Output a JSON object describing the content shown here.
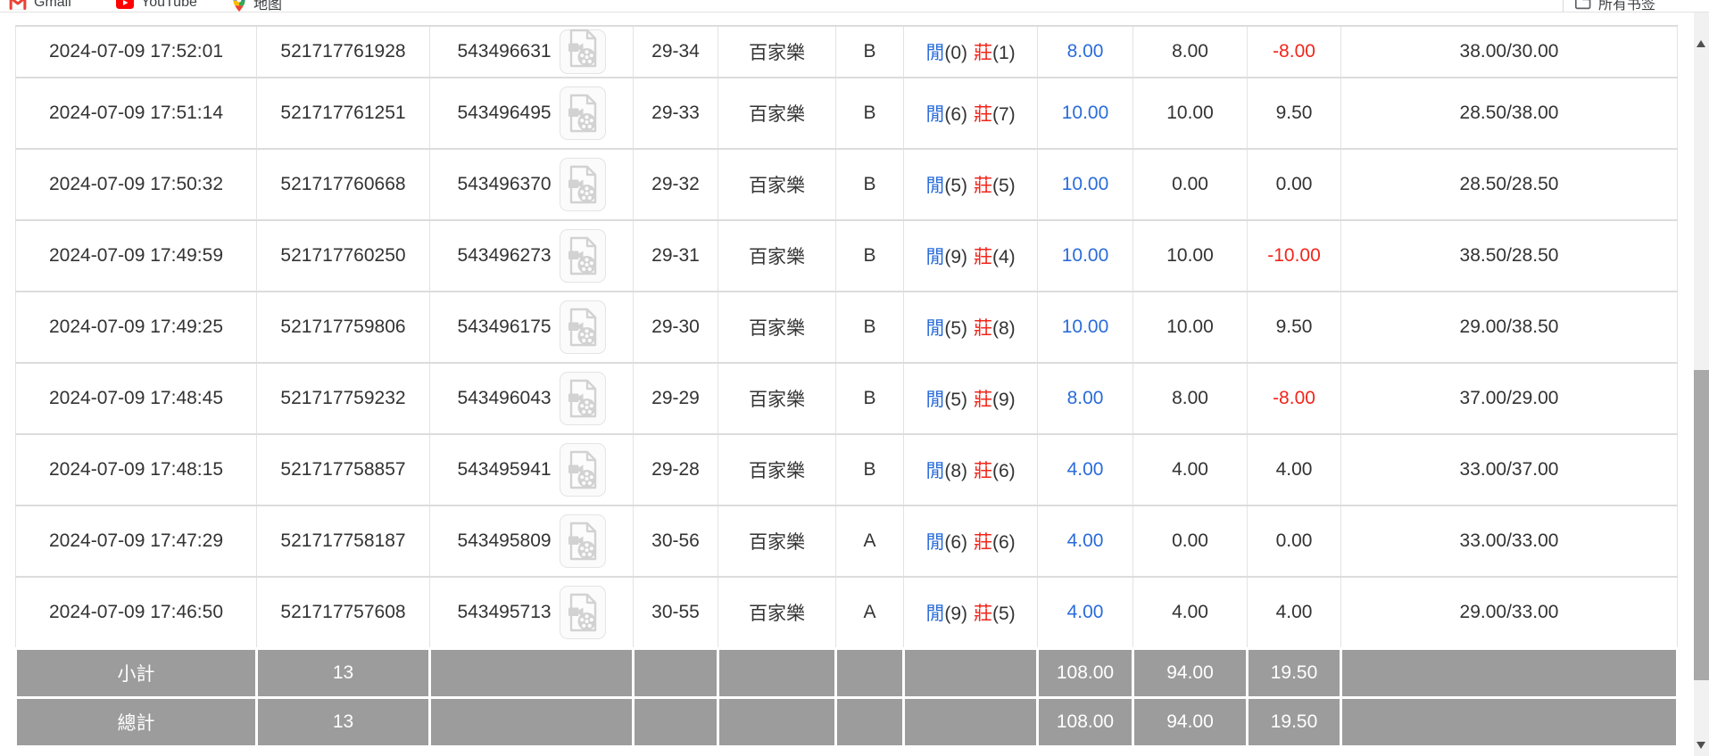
{
  "bookmarks_bar": {
    "items": [
      {
        "label": "Gmail",
        "icon": "gmail-icon"
      },
      {
        "label": "YouTube",
        "icon": "youtube-icon"
      },
      {
        "label": "地图",
        "icon": "maps-icon"
      }
    ],
    "all_bookmarks": {
      "label": "所有书签",
      "icon": "folder-icon"
    }
  },
  "table": {
    "rows": [
      {
        "time": "2024-07-09 17:52:01",
        "bet_id": "521717761928",
        "game_id": "543496631",
        "round": "29-34",
        "game": "百家樂",
        "table": "B",
        "player_label": "閒",
        "player_score": "(0)",
        "banker_label": "莊",
        "banker_score": "(1)",
        "bet": "8.00",
        "valid_bet": "8.00",
        "win_loss": "-8.00",
        "balance": "38.00/30.00"
      },
      {
        "time": "2024-07-09 17:51:14",
        "bet_id": "521717761251",
        "game_id": "543496495",
        "round": "29-33",
        "game": "百家樂",
        "table": "B",
        "player_label": "閒",
        "player_score": "(6)",
        "banker_label": "莊",
        "banker_score": "(7)",
        "bet": "10.00",
        "valid_bet": "10.00",
        "win_loss": "9.50",
        "balance": "28.50/38.00"
      },
      {
        "time": "2024-07-09 17:50:32",
        "bet_id": "521717760668",
        "game_id": "543496370",
        "round": "29-32",
        "game": "百家樂",
        "table": "B",
        "player_label": "閒",
        "player_score": "(5)",
        "banker_label": "莊",
        "banker_score": "(5)",
        "bet": "10.00",
        "valid_bet": "0.00",
        "win_loss": "0.00",
        "balance": "28.50/28.50"
      },
      {
        "time": "2024-07-09 17:49:59",
        "bet_id": "521717760250",
        "game_id": "543496273",
        "round": "29-31",
        "game": "百家樂",
        "table": "B",
        "player_label": "閒",
        "player_score": "(9)",
        "banker_label": "莊",
        "banker_score": "(4)",
        "bet": "10.00",
        "valid_bet": "10.00",
        "win_loss": "-10.00",
        "balance": "38.50/28.50"
      },
      {
        "time": "2024-07-09 17:49:25",
        "bet_id": "521717759806",
        "game_id": "543496175",
        "round": "29-30",
        "game": "百家樂",
        "table": "B",
        "player_label": "閒",
        "player_score": "(5)",
        "banker_label": "莊",
        "banker_score": "(8)",
        "bet": "10.00",
        "valid_bet": "10.00",
        "win_loss": "9.50",
        "balance": "29.00/38.50"
      },
      {
        "time": "2024-07-09 17:48:45",
        "bet_id": "521717759232",
        "game_id": "543496043",
        "round": "29-29",
        "game": "百家樂",
        "table": "B",
        "player_label": "閒",
        "player_score": "(5)",
        "banker_label": "莊",
        "banker_score": "(9)",
        "bet": "8.00",
        "valid_bet": "8.00",
        "win_loss": "-8.00",
        "balance": "37.00/29.00"
      },
      {
        "time": "2024-07-09 17:48:15",
        "bet_id": "521717758857",
        "game_id": "543495941",
        "round": "29-28",
        "game": "百家樂",
        "table": "B",
        "player_label": "閒",
        "player_score": "(8)",
        "banker_label": "莊",
        "banker_score": "(6)",
        "bet": "4.00",
        "valid_bet": "4.00",
        "win_loss": "4.00",
        "balance": "33.00/37.00"
      },
      {
        "time": "2024-07-09 17:47:29",
        "bet_id": "521717758187",
        "game_id": "543495809",
        "round": "30-56",
        "game": "百家樂",
        "table": "A",
        "player_label": "閒",
        "player_score": "(6)",
        "banker_label": "莊",
        "banker_score": "(6)",
        "bet": "4.00",
        "valid_bet": "0.00",
        "win_loss": "0.00",
        "balance": "33.00/33.00"
      },
      {
        "time": "2024-07-09 17:46:50",
        "bet_id": "521717757608",
        "game_id": "543495713",
        "round": "30-55",
        "game": "百家樂",
        "table": "A",
        "player_label": "閒",
        "player_score": "(9)",
        "banker_label": "莊",
        "banker_score": "(5)",
        "bet": "4.00",
        "valid_bet": "4.00",
        "win_loss": "4.00",
        "balance": "29.00/33.00"
      }
    ],
    "subtotal": {
      "label": "小計",
      "count": "13",
      "bet": "108.00",
      "valid_bet": "94.00",
      "win_loss": "19.50"
    },
    "total": {
      "label": "總計",
      "count": "13",
      "bet": "108.00",
      "valid_bet": "94.00",
      "win_loss": "19.50"
    }
  },
  "icons": {
    "video_button": "video-replay-icon",
    "scroll_up": "scroll-up-arrow",
    "scroll_down": "scroll-down-arrow"
  },
  "colors": {
    "link_blue": "#2a6cd9",
    "loss_red": "#f1261b",
    "summary_gray": "#9c9c9c"
  }
}
